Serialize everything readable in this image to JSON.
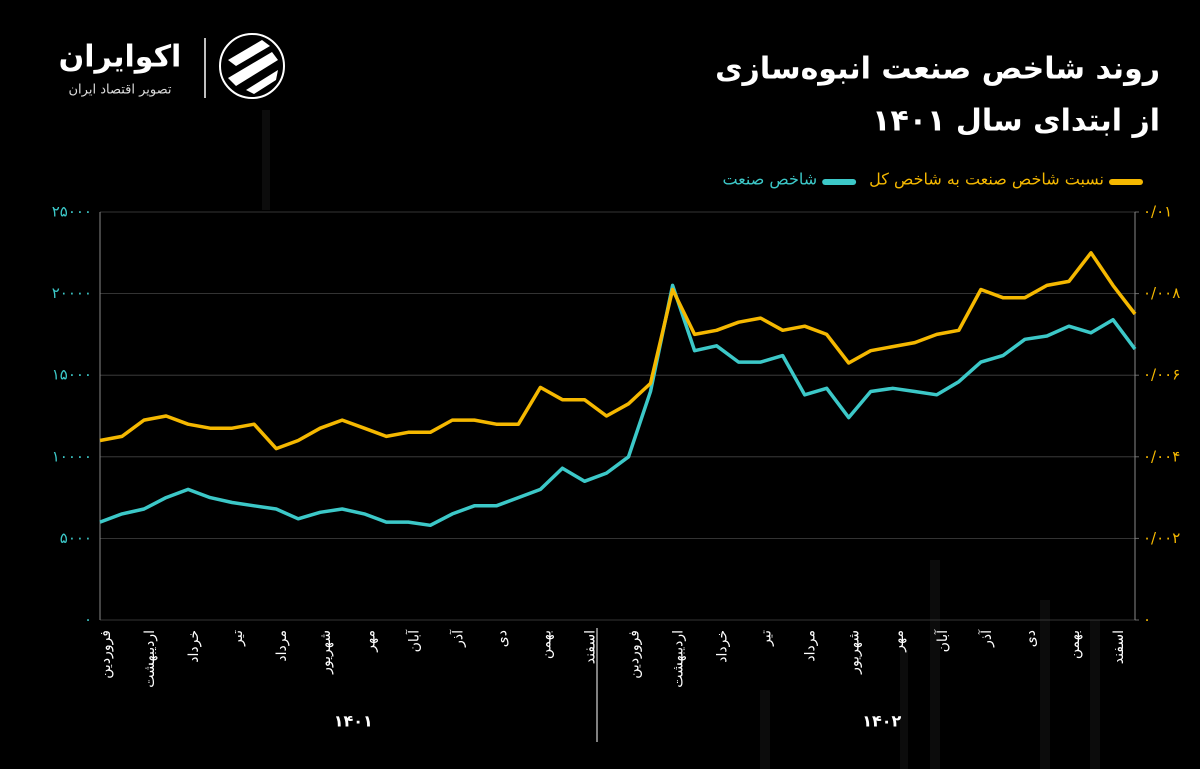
{
  "brand": {
    "name": "اکوایران",
    "tagline": "تصویر اقتصاد ایران"
  },
  "chart_data": {
    "type": "line",
    "title": "روند شاخص صنعت انبوه‌سازی",
    "subtitle": "از ابتدای سال ۱۴۰۱",
    "categories": [
      "فروردین",
      null,
      "اردیبهشت",
      null,
      "خرداد",
      null,
      "تیر",
      null,
      "مرداد",
      null,
      "شهریور",
      null,
      "مهر",
      null,
      "آبان",
      null,
      "آذر",
      null,
      "دی",
      null,
      "بهمن",
      null,
      "اسفند",
      null,
      "فروردین",
      null,
      "اردیبهشت",
      null,
      "خرداد",
      null,
      "تیر",
      null,
      "مرداد",
      null,
      "شهریور",
      null,
      "مهر",
      null,
      "آبان",
      null,
      "آذر",
      null,
      "دی",
      null,
      "بهمن",
      null,
      "اسفند",
      null
    ],
    "x_groups": [
      "۱۴۰۱",
      "۱۴۰۲"
    ],
    "series": [
      {
        "name": "نسبت شاخص صنعت به شاخص کل",
        "color": "#f5b800",
        "axis": "y2",
        "values": [
          0.0044,
          0.0045,
          0.0049,
          0.005,
          0.0048,
          0.0047,
          0.0047,
          0.0048,
          0.0042,
          0.0044,
          0.0047,
          0.0049,
          0.0047,
          0.0045,
          0.0046,
          0.0046,
          0.0049,
          0.0049,
          0.0048,
          0.0048,
          0.0057,
          0.0054,
          0.0054,
          0.005,
          0.0053,
          0.0058,
          0.0081,
          0.007,
          0.0071,
          0.0073,
          0.0074,
          0.0071,
          0.0072,
          0.007,
          0.0063,
          0.0066,
          0.0067,
          0.0068,
          0.007,
          0.0071,
          0.0081,
          0.0079,
          0.0079,
          0.0082,
          0.0083,
          0.009,
          0.0082,
          0.0075
        ]
      },
      {
        "name": "شاخص صنعت",
        "color": "#3cc8c8",
        "values": [
          6000,
          6500,
          6800,
          7500,
          8000,
          7500,
          7200,
          7000,
          6800,
          6200,
          6600,
          6800,
          6500,
          6000,
          6000,
          5800,
          6500,
          7000,
          7000,
          7500,
          8000,
          9300,
          8500,
          9000,
          10000,
          14000,
          20500,
          16500,
          16800,
          15800,
          15800,
          16200,
          13800,
          14200,
          12400,
          14000,
          14200,
          14000,
          13800,
          14600,
          15800,
          16200,
          17200,
          17400,
          18000,
          17600,
          18400,
          16600
        ]
      }
    ],
    "ylim": [
      0,
      25000
    ],
    "yticks": [
      {
        "value": 0,
        "label": "۰"
      },
      {
        "value": 5000,
        "label": "۵۰۰۰"
      },
      {
        "value": 10000,
        "label": "۱۰۰۰۰"
      },
      {
        "value": 15000,
        "label": "۱۵۰۰۰"
      },
      {
        "value": 20000,
        "label": "۲۰۰۰۰"
      },
      {
        "value": 25000,
        "label": "۲۵۰۰۰"
      }
    ],
    "y2lim": [
      0,
      0.01
    ],
    "y2ticks": [
      {
        "value": 0,
        "label": "۰"
      },
      {
        "value": 0.002,
        "label": "۰/۰۰۲"
      },
      {
        "value": 0.004,
        "label": "۰/۰۰۴"
      },
      {
        "value": 0.006,
        "label": "۰/۰۰۶"
      },
      {
        "value": 0.008,
        "label": "۰/۰۰۸"
      },
      {
        "value": 0.01,
        "label": "۰/۰۱"
      }
    ],
    "grid": true
  }
}
